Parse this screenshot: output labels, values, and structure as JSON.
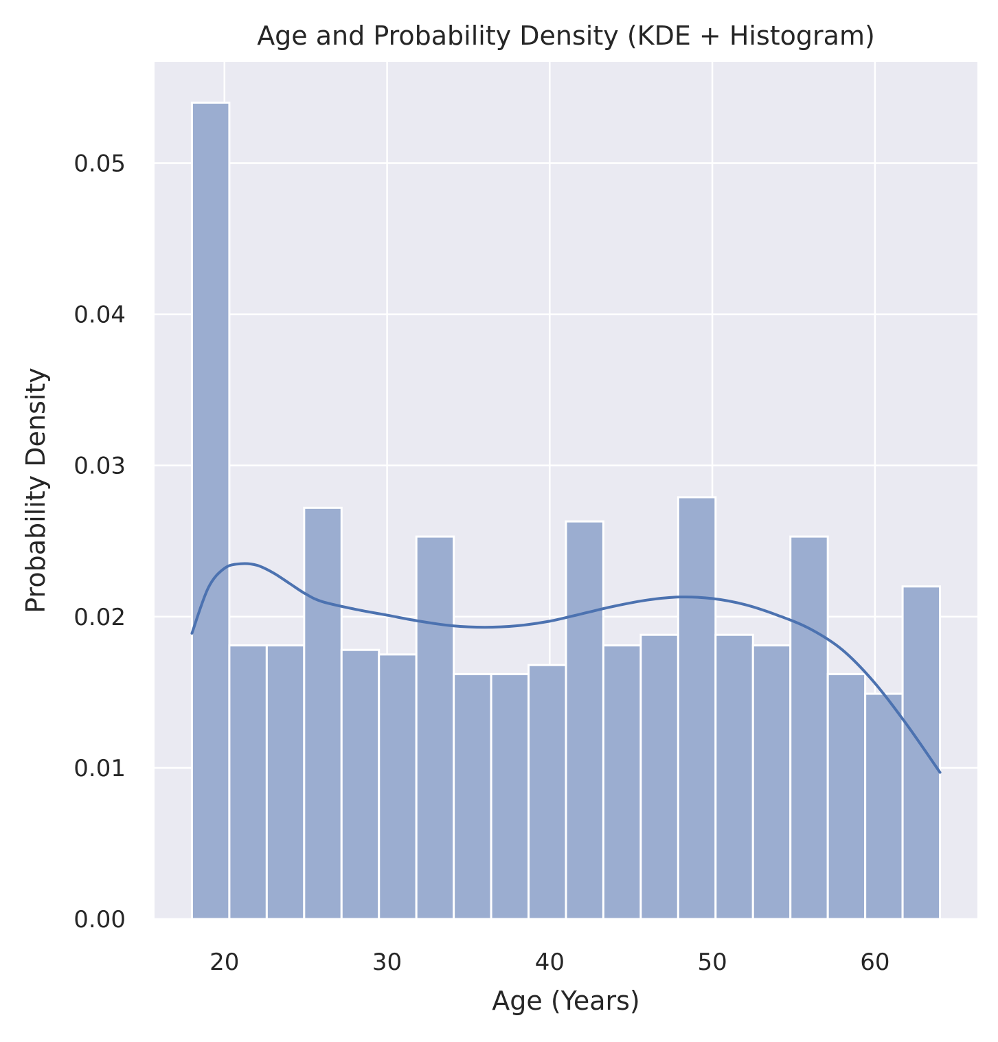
{
  "chart_data": {
    "type": "bar",
    "title": "Age and Probability Density (KDE + Histogram)",
    "xlabel": "Age (Years)",
    "ylabel": "Probability Density",
    "xlim": [
      15.7,
      66.3
    ],
    "ylim": [
      0,
      0.0567
    ],
    "xticks": [
      20,
      30,
      40,
      50,
      60
    ],
    "xtick_labels": [
      "20",
      "30",
      "40",
      "50",
      "60"
    ],
    "yticks": [
      0,
      0.01,
      0.02,
      0.03,
      0.04,
      0.05
    ],
    "ytick_labels": [
      "0.00",
      "0.01",
      "0.02",
      "0.03",
      "0.04",
      "0.05"
    ],
    "grid": true,
    "histogram": {
      "bin_edges": [
        18,
        20.3,
        22.6,
        24.9,
        27.2,
        29.5,
        31.8,
        34.1,
        36.4,
        38.7,
        41,
        43.3,
        45.6,
        47.9,
        50.2,
        52.5,
        54.8,
        57.1,
        59.4,
        61.7,
        64
      ],
      "density": [
        0.054,
        0.0181,
        0.0181,
        0.0272,
        0.0178,
        0.0175,
        0.0253,
        0.0162,
        0.0162,
        0.0168,
        0.0263,
        0.0181,
        0.0188,
        0.0279,
        0.0188,
        0.0181,
        0.0253,
        0.0162,
        0.0149,
        0.022
      ],
      "color": "#9badd0",
      "edge_color": "#ffffff"
    },
    "kde": {
      "x": [
        18,
        19,
        20,
        21,
        22,
        23,
        24,
        25,
        26,
        28,
        30,
        32,
        34,
        36,
        38,
        40,
        42,
        44,
        46,
        48,
        50,
        52,
        54,
        56,
        58,
        60,
        62,
        64
      ],
      "y": [
        0.0189,
        0.0219,
        0.0232,
        0.0235,
        0.0234,
        0.0229,
        0.0222,
        0.0215,
        0.021,
        0.0205,
        0.0201,
        0.0197,
        0.0194,
        0.0193,
        0.0194,
        0.0197,
        0.0202,
        0.0207,
        0.0211,
        0.0213,
        0.0212,
        0.0208,
        0.0201,
        0.0192,
        0.0178,
        0.0156,
        0.0128,
        0.0097
      ],
      "color": "#4c72b0"
    },
    "colors": {
      "plot_background": "#eaeaf2",
      "grid": "#ffffff",
      "text": "#262626"
    }
  }
}
